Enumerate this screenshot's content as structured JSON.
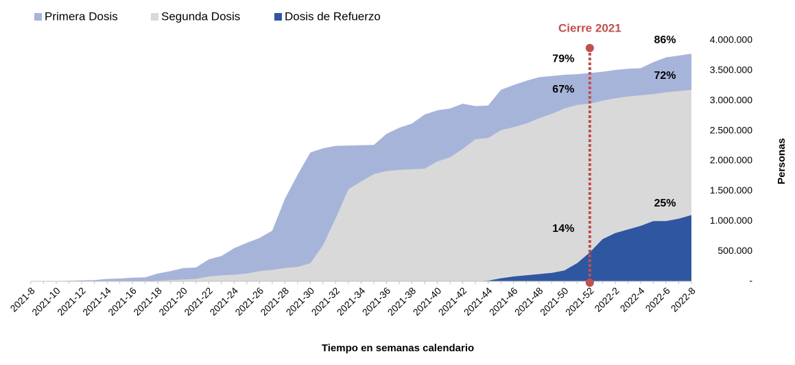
{
  "chart_data": {
    "type": "area",
    "categories": [
      "2021-8",
      null,
      "2021-10",
      null,
      "2021-12",
      null,
      "2021-14",
      null,
      "2021-16",
      null,
      "2021-18",
      null,
      "2021-20",
      null,
      "2021-22",
      null,
      "2021-24",
      null,
      "2021-26",
      null,
      "2021-28",
      null,
      "2021-30",
      null,
      "2021-32",
      null,
      "2021-34",
      null,
      "2021-36",
      null,
      "2021-38",
      null,
      "2021-40",
      null,
      "2021-42",
      null,
      "2021-44",
      null,
      "2021-46",
      null,
      "2021-48",
      null,
      "2021-50",
      null,
      "2021-52",
      null,
      "2022-2",
      null,
      "2022-4",
      null,
      "2022-6",
      null,
      "2022-8"
    ],
    "series": [
      {
        "name": "Primera Dosis",
        "color": "#a7b4da",
        "values": [
          0,
          2000,
          5000,
          8000,
          15000,
          20000,
          40000,
          45000,
          60000,
          65000,
          130000,
          170000,
          220000,
          230000,
          365000,
          420000,
          550000,
          640000,
          720000,
          840000,
          1370000,
          1770000,
          2140000,
          2210000,
          2250000,
          2255000,
          2260000,
          2265000,
          2450000,
          2550000,
          2620000,
          2770000,
          2840000,
          2870000,
          2950000,
          2910000,
          2920000,
          3180000,
          3260000,
          3330000,
          3390000,
          3410000,
          3430000,
          3440000,
          3460000,
          3480000,
          3510000,
          3530000,
          3540000,
          3640000,
          3720000,
          3750000,
          3780000
        ]
      },
      {
        "name": "Segunda Dosis",
        "color": "#d9d9d9",
        "values": [
          0,
          0,
          0,
          0,
          0,
          0,
          0,
          0,
          0,
          0,
          10000,
          20000,
          30000,
          40000,
          80000,
          100000,
          110000,
          130000,
          170000,
          190000,
          220000,
          240000,
          300000,
          600000,
          1050000,
          1530000,
          1660000,
          1780000,
          1830000,
          1850000,
          1860000,
          1870000,
          1990000,
          2060000,
          2200000,
          2360000,
          2380000,
          2510000,
          2560000,
          2620000,
          2710000,
          2780000,
          2870000,
          2930000,
          2950000,
          3000000,
          3040000,
          3070000,
          3090000,
          3110000,
          3140000,
          3160000,
          3180000
        ]
      },
      {
        "name": "Dosis de Refuerzo",
        "color": "#2f56a0",
        "values": [
          0,
          0,
          0,
          0,
          0,
          0,
          0,
          0,
          0,
          0,
          0,
          0,
          0,
          0,
          0,
          0,
          0,
          0,
          0,
          0,
          0,
          0,
          0,
          0,
          0,
          0,
          0,
          0,
          0,
          0,
          0,
          0,
          0,
          0,
          0,
          0,
          10000,
          50000,
          80000,
          100000,
          120000,
          140000,
          180000,
          300000,
          480000,
          700000,
          800000,
          860000,
          920000,
          1000000,
          1000000,
          1040000,
          1100000
        ]
      }
    ],
    "ylim": [
      0,
      4000000
    ],
    "yticks": [
      {
        "value": 0,
        "label": "-"
      },
      {
        "value": 500000,
        "label": "500.000"
      },
      {
        "value": 1000000,
        "label": "1.000.000"
      },
      {
        "value": 1500000,
        "label": "1.500.000"
      },
      {
        "value": 2000000,
        "label": "2.000.000"
      },
      {
        "value": 2500000,
        "label": "2.500.000"
      },
      {
        "value": 3000000,
        "label": "3.000.000"
      },
      {
        "value": 3500000,
        "label": "3.500.000"
      },
      {
        "value": 4000000,
        "label": "4.000.000"
      }
    ],
    "x_label": "Tiempo en semanas calendario",
    "y_label": "Personas",
    "annotations": [
      "79%",
      "67%",
      "14%",
      "86%",
      "72%",
      "25%"
    ],
    "marker": {
      "label": "Cierre 2021",
      "category": "2021-52",
      "color": "#c0504d"
    },
    "legend": "top-left",
    "grid": false
  }
}
